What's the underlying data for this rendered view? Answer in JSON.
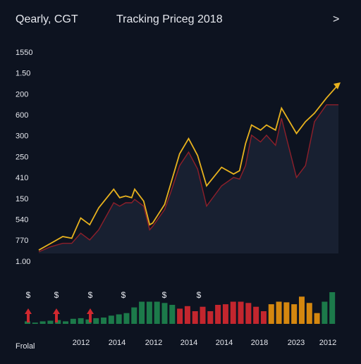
{
  "header": {
    "left": "Qearly, CGT",
    "title": "Tracking Priceg 2018",
    "chevron": ">"
  },
  "chart_data": {
    "type": "line",
    "y_labels": [
      "1550",
      "1.50",
      "200",
      "600",
      "300",
      "250",
      "410",
      "150",
      "540",
      "770",
      "1.00"
    ],
    "xlim": [
      0,
      100
    ],
    "ylim": [
      0,
      100
    ],
    "x": [
      0,
      4,
      8,
      11,
      14,
      17,
      20,
      25,
      27,
      29,
      31,
      32,
      35,
      37,
      38,
      42,
      44,
      47,
      50,
      53,
      56,
      61,
      65,
      67,
      69,
      71,
      74,
      76,
      79,
      81,
      86,
      89,
      92,
      96,
      100
    ],
    "series": [
      {
        "color": "#e8b21e",
        "values": [
          2,
          6,
          10,
          9,
          21,
          17,
          27,
          38,
          33,
          34,
          33,
          38,
          31,
          17,
          18,
          29,
          41,
          59,
          68,
          58,
          40,
          51,
          47,
          49,
          65,
          76,
          73,
          76,
          73,
          86,
          71,
          78,
          83,
          92,
          100
        ]
      },
      {
        "color": "#8e1f2a",
        "values": [
          1,
          4,
          6,
          6,
          12,
          8,
          14,
          30,
          28,
          30,
          30,
          32,
          28,
          14,
          16,
          26,
          36,
          52,
          60,
          50,
          28,
          40,
          45,
          44,
          52,
          70,
          66,
          70,
          64,
          80,
          45,
          52,
          78,
          88,
          88
        ]
      }
    ],
    "volume": {
      "values": [
        8,
        4,
        8,
        10,
        12,
        8,
        16,
        18,
        14,
        18,
        20,
        26,
        30,
        34,
        52,
        70,
        70,
        70,
        66,
        60,
        48,
        56,
        40,
        54,
        40,
        60,
        62,
        70,
        70,
        66,
        54,
        40,
        62,
        70,
        68,
        62,
        86,
        66,
        34,
        70,
        100
      ],
      "colors": [
        "#1c7a4a",
        "#1c7a4a",
        "#1c7a4a",
        "#1c7a4a",
        "#1c7a4a",
        "#1c7a4a",
        "#1c7a4a",
        "#1c7a4a",
        "#1c7a4a",
        "#1c7a4a",
        "#1c7a4a",
        "#1c7a4a",
        "#1c7a4a",
        "#1c7a4a",
        "#1c7a4a",
        "#1c7a4a",
        "#1c7a4a",
        "#1c7a4a",
        "#1c7a4a",
        "#1c7a4a",
        "#c3262e",
        "#c3262e",
        "#c3262e",
        "#c3262e",
        "#c3262e",
        "#c3262e",
        "#c3262e",
        "#c3262e",
        "#c3262e",
        "#c3262e",
        "#c3262e",
        "#c3262e",
        "#d4870f",
        "#d4870f",
        "#d4870f",
        "#d4870f",
        "#d4870f",
        "#d4870f",
        "#d4870f",
        "#1c7a4a",
        "#1c7a4a"
      ],
      "markers": [
        "$",
        "$",
        "$",
        "$",
        "$",
        "$"
      ]
    },
    "x_labels": [
      "2012",
      "2014",
      "2012",
      "2014",
      "2014",
      "2018",
      "2023",
      "2012"
    ],
    "footer": "Frolal"
  }
}
